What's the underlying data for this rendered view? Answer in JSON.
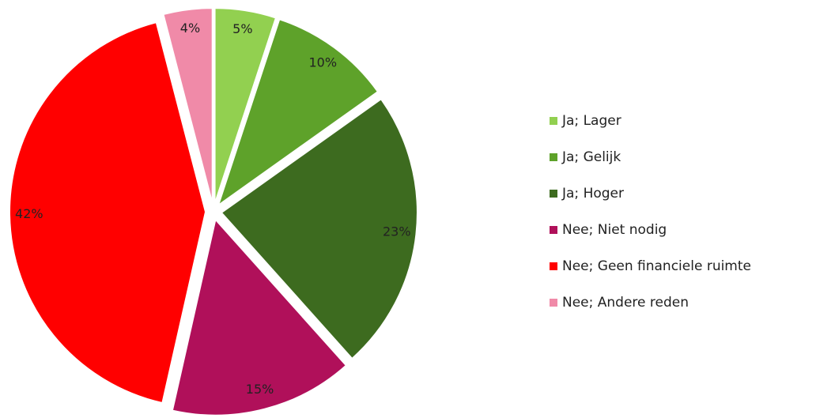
{
  "chart_data": {
    "type": "pie",
    "categories": [
      "Ja; Lager",
      "Ja; Gelijk",
      "Ja; Hoger",
      "Nee; Niet nodig",
      "Nee; Geen financiele ruimte",
      "Nee; Andere reden"
    ],
    "values": [
      5,
      10,
      23,
      15,
      42,
      4
    ],
    "value_labels": [
      "5%",
      "10%",
      "23%",
      "15%",
      "42%",
      "4%"
    ],
    "colors": [
      "#92d050",
      "#5ea22a",
      "#3d6b1f",
      "#b0105a",
      "#ff0000",
      "#f08aa8"
    ],
    "legend": "right"
  }
}
